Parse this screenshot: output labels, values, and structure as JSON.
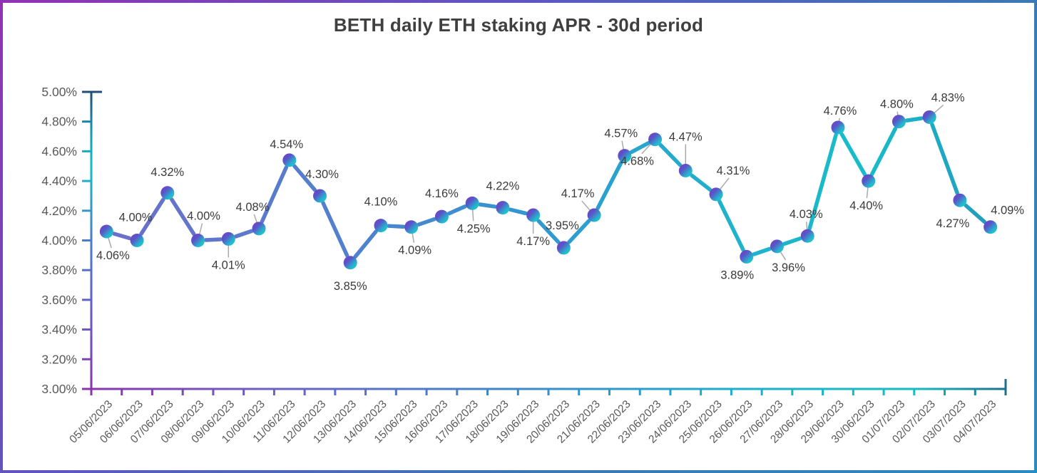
{
  "window": {
    "border_gradient": [
      "#9132B4",
      "#5A5BBF",
      "#3C78B4",
      "#2B8AC0"
    ],
    "background": "#ffffff"
  },
  "chart_data": {
    "type": "line",
    "title": "BETH daily ETH staking APR - 30d period",
    "categories": [
      "05/06/2023",
      "06/06/2023",
      "07/06/2023",
      "08/06/2023",
      "09/06/2023",
      "10/06/2023",
      "11/06/2023",
      "12/06/2023",
      "13/06/2023",
      "14/06/2023",
      "15/06/2023",
      "16/06/2023",
      "17/06/2023",
      "18/06/2023",
      "19/06/2023",
      "20/06/2023",
      "21/06/2023",
      "22/06/2023",
      "23/06/2023",
      "24/06/2023",
      "25/06/2023",
      "26/06/2023",
      "27/06/2023",
      "28/06/2023",
      "29/06/2023",
      "30/06/2023",
      "01/07/2023",
      "02/07/2023",
      "03/07/2023",
      "04/07/2023"
    ],
    "values": [
      4.06,
      4.0,
      4.32,
      4.0,
      4.01,
      4.08,
      4.54,
      4.3,
      3.85,
      4.1,
      4.09,
      4.16,
      4.25,
      4.22,
      4.17,
      3.95,
      4.17,
      4.57,
      4.68,
      4.47,
      4.31,
      3.89,
      3.96,
      4.03,
      4.76,
      4.4,
      4.8,
      4.83,
      4.27,
      4.09
    ],
    "point_labels": [
      "4.06%",
      "4.00%",
      "4.32%",
      "4.00%",
      "4.01%",
      "4.08%",
      "4.54%",
      "4.30%",
      "3.85%",
      "4.10%",
      "4.09%",
      "4.16%",
      "4.25%",
      "4.22%",
      "4.17%",
      "3.95%",
      "4.17%",
      "4.57%",
      "4.68%",
      "4.47%",
      "4.31%",
      "3.89%",
      "3.96%",
      "4.03%",
      "4.76%",
      "4.40%",
      "4.80%",
      "4.83%",
      "4.27%",
      "4.09%"
    ],
    "y_ticks": [
      "5.00%",
      "4.80%",
      "4.60%",
      "4.40%",
      "4.20%",
      "4.00%",
      "3.80%",
      "3.60%",
      "3.40%",
      "3.20%",
      "3.00%"
    ],
    "ylim": [
      3.0,
      5.0
    ],
    "xlabel": "",
    "ylabel": "",
    "grid": "off",
    "legend": "none",
    "line_style": "dashed gradient line with gradient circle markers",
    "label_layout": [
      [
        9,
        39,
        1
      ],
      [
        -2,
        -27,
        0
      ],
      [
        0,
        -24,
        0
      ],
      [
        8,
        -29,
        1
      ],
      [
        0,
        42,
        1
      ],
      [
        -9,
        -25,
        1
      ],
      [
        -4,
        -17,
        0
      ],
      [
        3,
        -25,
        0
      ],
      [
        0,
        38,
        0
      ],
      [
        0,
        -28,
        0
      ],
      [
        5,
        38,
        1
      ],
      [
        0,
        -27,
        0
      ],
      [
        2,
        41,
        1
      ],
      [
        0,
        -25,
        0
      ],
      [
        0,
        42,
        1
      ],
      [
        -2,
        -26,
        0
      ],
      [
        -23,
        -25,
        1
      ],
      [
        -5,
        -26,
        1
      ],
      [
        -25,
        36,
        1
      ],
      [
        0,
        -42,
        1
      ],
      [
        24,
        -28,
        1
      ],
      [
        -13,
        31,
        0
      ],
      [
        16,
        35,
        1
      ],
      [
        -2,
        -25,
        1
      ],
      [
        3,
        -18,
        1
      ],
      [
        -3,
        40,
        1
      ],
      [
        -3,
        -19,
        1
      ],
      [
        26,
        -22,
        1
      ],
      [
        -10,
        38,
        0
      ],
      [
        24,
        -18,
        0
      ]
    ],
    "colors": {
      "title_text": "#3F3F3F",
      "axis_tick_text": "#595959",
      "data_label_text": "#3B3B3B",
      "leader_line": "#A9A9A9",
      "marker_gradient": [
        "#7A3EC6",
        "#5A54C8",
        "#23B8CE",
        "#1FC9C4"
      ],
      "line_gradient": [
        "#6F6EC9",
        "#4E82CE",
        "#2F9AD0",
        "#1FB2CC",
        "#17BDC8",
        "#2596BE"
      ],
      "y_axis_gradient": [
        "#1F4E79",
        "#189AB4",
        "#16BDC6",
        "#4A7CC8",
        "#5F64C4",
        "#8A34AC"
      ],
      "x_axis_gradient": [
        "#8A34AC",
        "#6B62C2",
        "#3E86C8",
        "#1CAECC",
        "#14BDC6",
        "#1F6E8C"
      ]
    }
  }
}
